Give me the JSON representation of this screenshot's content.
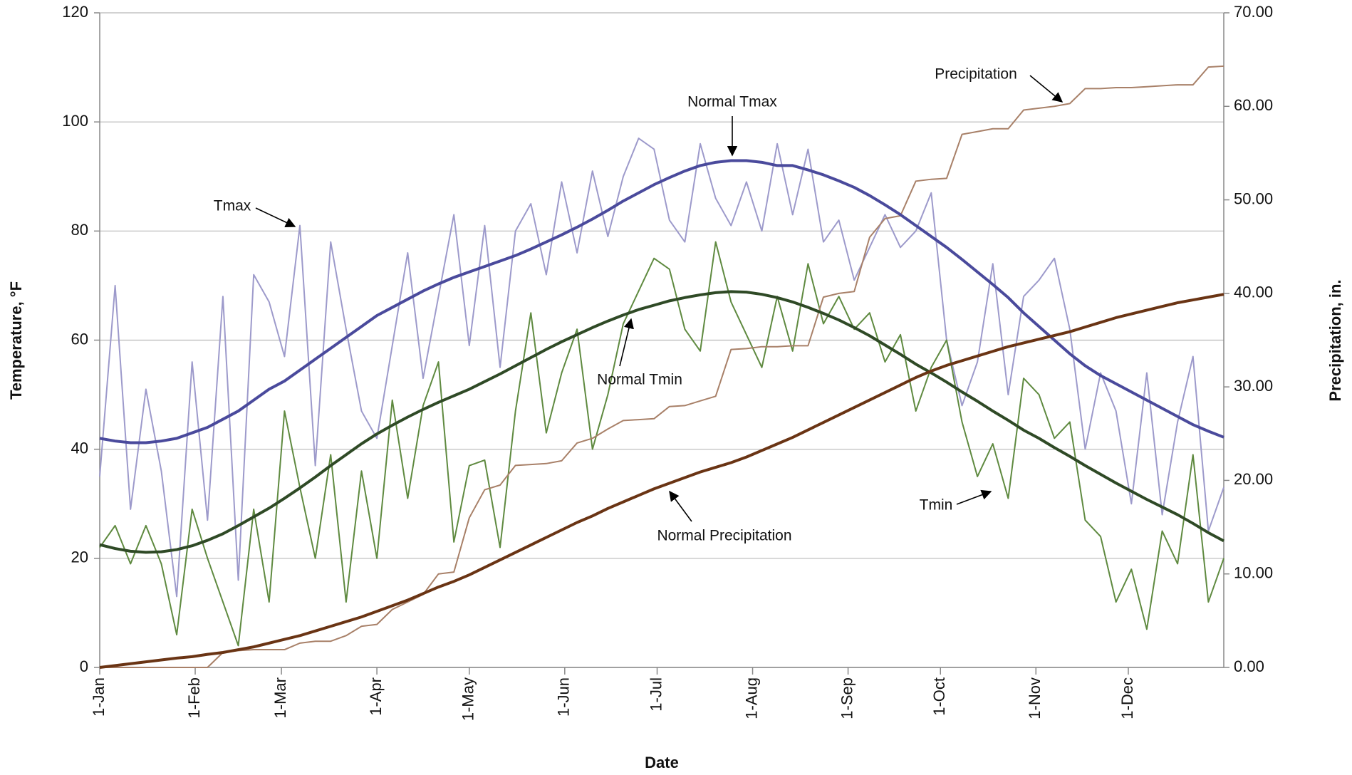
{
  "chart_data": {
    "type": "line",
    "x_label": "Date",
    "y_label": "Temperature, °F",
    "y2_label": "Precipitation, in.",
    "xlim": [
      0,
      365
    ],
    "xticks": [
      {
        "value": 0,
        "label": "1-Jan"
      },
      {
        "value": 31,
        "label": "1-Feb"
      },
      {
        "value": 59,
        "label": "1-Mar"
      },
      {
        "value": 90,
        "label": "1-Apr"
      },
      {
        "value": 120,
        "label": "1-May"
      },
      {
        "value": 151,
        "label": "1-Jun"
      },
      {
        "value": 181,
        "label": "1-Jul"
      },
      {
        "value": 212,
        "label": "1-Aug"
      },
      {
        "value": 243,
        "label": "1-Sep"
      },
      {
        "value": 273,
        "label": "1-Oct"
      },
      {
        "value": 304,
        "label": "1-Nov"
      },
      {
        "value": 334,
        "label": "1-Dec"
      }
    ],
    "ylim": [
      0,
      120
    ],
    "yticks": [
      0,
      20,
      40,
      60,
      80,
      100,
      120
    ],
    "y2lim": [
      0,
      70
    ],
    "y2ticks": [
      {
        "value": 0,
        "label": "0.00"
      },
      {
        "value": 10,
        "label": "10.00"
      },
      {
        "value": 20,
        "label": "20.00"
      },
      {
        "value": 30,
        "label": "30.00"
      },
      {
        "value": 40,
        "label": "40.00"
      },
      {
        "value": 50,
        "label": "50.00"
      },
      {
        "value": 60,
        "label": "60.00"
      },
      {
        "value": 70,
        "label": "70.00"
      }
    ],
    "grid": true,
    "x": [
      0,
      5,
      10,
      15,
      20,
      25,
      30,
      35,
      40,
      45,
      50,
      55,
      60,
      65,
      70,
      75,
      80,
      85,
      90,
      95,
      100,
      105,
      110,
      115,
      120,
      125,
      130,
      135,
      140,
      145,
      150,
      155,
      160,
      165,
      170,
      175,
      180,
      185,
      190,
      195,
      200,
      205,
      210,
      215,
      220,
      225,
      230,
      235,
      240,
      245,
      250,
      255,
      260,
      265,
      270,
      275,
      280,
      285,
      290,
      295,
      300,
      305,
      310,
      315,
      320,
      325,
      330,
      335,
      340,
      345,
      350,
      355,
      360,
      365
    ],
    "series": [
      {
        "name": "Tmax",
        "color": "#9d9acb",
        "width": 2,
        "values": [
          35,
          70,
          29,
          51,
          36,
          13,
          56,
          27,
          68,
          16,
          72,
          67,
          57,
          81,
          37,
          78,
          62,
          47,
          42,
          59,
          76,
          53,
          68,
          83,
          59,
          81,
          55,
          80,
          85,
          72,
          89,
          76,
          91,
          79,
          90,
          97,
          95,
          82,
          78,
          96,
          86,
          81,
          89,
          80,
          96,
          83,
          95,
          78,
          82,
          71,
          77,
          83,
          77,
          80,
          87,
          60,
          48,
          56,
          74,
          50,
          68,
          71,
          75,
          62,
          40,
          54,
          47,
          30,
          54,
          28,
          45,
          57,
          25,
          33
        ]
      },
      {
        "name": "Tmin",
        "color": "#5f8a40",
        "width": 2,
        "values": [
          22,
          26,
          19,
          26,
          19,
          6,
          29,
          20,
          12,
          4,
          29,
          12,
          47,
          33,
          20,
          39,
          12,
          36,
          20,
          49,
          31,
          48,
          56,
          23,
          37,
          38,
          22,
          47,
          65,
          43,
          54,
          62,
          40,
          50,
          63,
          69,
          75,
          73,
          62,
          58,
          78,
          67,
          61,
          55,
          68,
          58,
          74,
          63,
          68,
          62,
          65,
          56,
          61,
          47,
          55,
          60,
          45,
          35,
          41,
          31,
          53,
          50,
          42,
          45,
          27,
          24,
          12,
          18,
          7,
          25,
          19,
          39,
          12,
          20
        ]
      },
      {
        "name": "Precipitation",
        "color": "#a88068",
        "width": 2,
        "axis": "y2",
        "values": [
          0,
          0,
          0,
          0,
          0,
          0,
          0,
          0,
          1.6,
          1.8,
          1.9,
          1.9,
          1.9,
          2.6,
          2.8,
          2.8,
          3.4,
          4.4,
          4.6,
          6.2,
          7,
          7.8,
          10,
          10.2,
          16,
          19,
          19.5,
          21.6,
          21.7,
          21.8,
          22.1,
          24,
          24.5,
          25.5,
          26.4,
          26.5,
          26.6,
          27.9,
          28,
          28.5,
          29,
          34,
          34.1,
          34.3,
          34.3,
          34.4,
          34.4,
          39.6,
          40,
          40.2,
          46,
          48,
          48.3,
          52,
          52.2,
          52.3,
          57,
          57.3,
          57.6,
          57.6,
          59.6,
          59.8,
          60,
          60.3,
          61.9,
          61.9,
          62,
          62,
          62.1,
          62.2,
          62.3,
          62.3,
          64.2,
          64.3
        ]
      },
      {
        "name": "Normal Tmax",
        "color": "#4a4a9c",
        "width": 4,
        "values": [
          42,
          41.5,
          41.2,
          41.2,
          41.5,
          42,
          43,
          44,
          45.5,
          47,
          49,
          51,
          52.5,
          54.5,
          56.5,
          58.5,
          60.5,
          62.5,
          64.5,
          66,
          67.5,
          69,
          70.3,
          71.5,
          72.5,
          73.5,
          74.5,
          75.5,
          76.7,
          78,
          79.3,
          80.7,
          82.2,
          83.8,
          85.5,
          87,
          88.5,
          89.8,
          91,
          92,
          92.6,
          92.9,
          92.9,
          92.6,
          92,
          92,
          91.2,
          90.3,
          89.2,
          88,
          86.5,
          84.8,
          83,
          81,
          79,
          77,
          74.8,
          72.5,
          70.2,
          67.8,
          65,
          62.5,
          60,
          57.5,
          55.3,
          53.5,
          52,
          50.5,
          49,
          47.5,
          46,
          44.5,
          43.3,
          42.2
        ]
      },
      {
        "name": "Normal Tmin",
        "color": "#2f4a26",
        "width": 4,
        "values": [
          22.5,
          21.8,
          21.3,
          21.1,
          21.2,
          21.6,
          22.3,
          23.3,
          24.5,
          26,
          27.6,
          29.2,
          31,
          32.9,
          34.9,
          37,
          39,
          41,
          42.8,
          44.4,
          45.9,
          47.3,
          48.6,
          49.8,
          51,
          52.4,
          53.8,
          55.3,
          56.8,
          58.3,
          59.7,
          61,
          62.3,
          63.5,
          64.6,
          65.6,
          66.4,
          67.2,
          67.8,
          68.3,
          68.7,
          68.9,
          68.8,
          68.4,
          67.8,
          67,
          66,
          64.9,
          63.7,
          62.3,
          60.8,
          59.1,
          57.4,
          55.6,
          54,
          52.3,
          50.5,
          48.8,
          47,
          45.3,
          43.5,
          42,
          40.3,
          38.7,
          37,
          35.4,
          33.8,
          32.3,
          30.8,
          29.4,
          28,
          26.4,
          24.7,
          23.2
        ]
      },
      {
        "name": "Normal Precipitation",
        "color": "#6a3414",
        "width": 4,
        "axis": "y2",
        "values": [
          0,
          0.2,
          0.4,
          0.6,
          0.8,
          1,
          1.15,
          1.4,
          1.6,
          1.9,
          2.2,
          2.6,
          3,
          3.4,
          3.9,
          4.4,
          4.9,
          5.4,
          6,
          6.6,
          7.2,
          7.9,
          8.6,
          9.2,
          9.9,
          10.7,
          11.5,
          12.3,
          13.1,
          13.9,
          14.7,
          15.5,
          16.2,
          17,
          17.7,
          18.4,
          19.1,
          19.7,
          20.3,
          20.9,
          21.4,
          21.9,
          22.5,
          23.2,
          23.9,
          24.6,
          25.4,
          26.2,
          27,
          27.8,
          28.6,
          29.4,
          30.2,
          31,
          31.7,
          32.3,
          32.8,
          33.3,
          33.8,
          34.3,
          34.7,
          35.1,
          35.5,
          35.9,
          36.4,
          36.9,
          37.4,
          37.8,
          38.2,
          38.6,
          39,
          39.3,
          39.6,
          39.9
        ]
      }
    ],
    "annotations": [
      "Tmax",
      "Normal Tmax",
      "Normal Tmin",
      "Normal Precipitation",
      "Precipitation",
      "Tmin"
    ]
  }
}
